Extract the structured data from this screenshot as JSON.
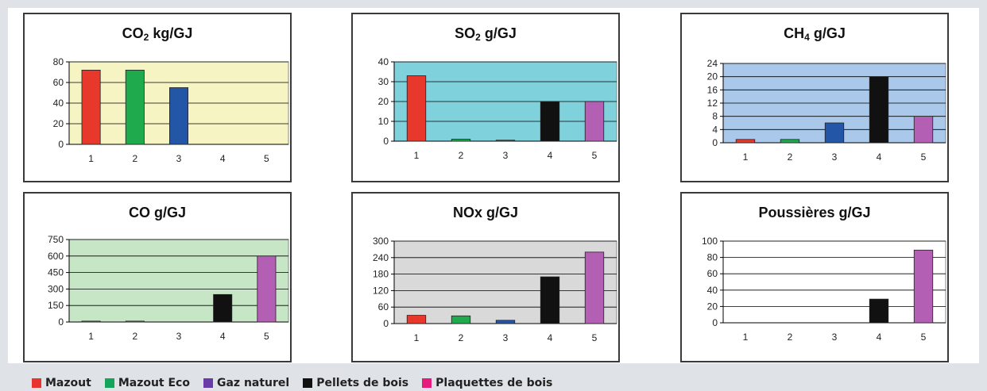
{
  "chart_data": [
    {
      "type": "bar",
      "title_main": "CO",
      "title_sub": "2",
      "title_rest": " kg/GJ",
      "categories": [
        "1",
        "2",
        "3",
        "4",
        "5"
      ],
      "values": [
        72,
        72,
        55,
        0,
        0
      ],
      "bar_colors": [
        "#e8372b",
        "#1faa4d",
        "#2456a8",
        "#111111",
        "#b35fb3"
      ],
      "ylim": [
        0,
        80
      ],
      "yticks": [
        "0",
        "20",
        "40",
        "60",
        "80"
      ],
      "plot_bg": "#f6f4c2"
    },
    {
      "type": "bar",
      "title_main": "SO",
      "title_sub": "2",
      "title_rest": " g/GJ",
      "categories": [
        "1",
        "2",
        "3",
        "4",
        "5"
      ],
      "values": [
        33,
        1,
        0.5,
        20,
        20
      ],
      "bar_colors": [
        "#e8372b",
        "#1faa4d",
        "#2456a8",
        "#111111",
        "#b35fb3"
      ],
      "ylim": [
        0,
        40
      ],
      "yticks": [
        "0",
        "10",
        "20",
        "30",
        "40"
      ],
      "plot_bg": "#7fd1dc"
    },
    {
      "type": "bar",
      "title_main": "CH",
      "title_sub": "4",
      "title_rest": " g/GJ",
      "categories": [
        "1",
        "2",
        "3",
        "4",
        "5"
      ],
      "values": [
        1,
        1,
        6,
        20,
        8
      ],
      "bar_colors": [
        "#e8372b",
        "#1faa4d",
        "#2456a8",
        "#111111",
        "#b35fb3"
      ],
      "ylim": [
        0,
        24
      ],
      "yticks": [
        "0",
        "4",
        "8",
        "12",
        "16",
        "20",
        "24"
      ],
      "plot_bg": "#a9c8ea"
    },
    {
      "type": "bar",
      "title_main": "CO g/GJ",
      "title_sub": "",
      "title_rest": "",
      "categories": [
        "1",
        "2",
        "3",
        "4",
        "5"
      ],
      "values": [
        8,
        8,
        0,
        250,
        600
      ],
      "bar_colors": [
        "#e8372b",
        "#1faa4d",
        "#2456a8",
        "#111111",
        "#b35fb3"
      ],
      "ylim": [
        0,
        750
      ],
      "yticks": [
        "0",
        "150",
        "300",
        "450",
        "600",
        "750"
      ],
      "plot_bg": "#c6e6c6"
    },
    {
      "type": "bar",
      "title_main": "NOx g/GJ",
      "title_sub": "",
      "title_rest": "",
      "categories": [
        "1",
        "2",
        "3",
        "4",
        "5"
      ],
      "values": [
        30,
        28,
        12,
        170,
        260
      ],
      "bar_colors": [
        "#e8372b",
        "#1faa4d",
        "#2456a8",
        "#111111",
        "#b35fb3"
      ],
      "ylim": [
        0,
        300
      ],
      "yticks": [
        "0",
        "60",
        "120",
        "180",
        "240",
        "300"
      ],
      "plot_bg": "#d9d9d9"
    },
    {
      "type": "bar",
      "title_main": "Poussières g/GJ",
      "title_sub": "",
      "title_rest": "",
      "categories": [
        "1",
        "2",
        "3",
        "4",
        "5"
      ],
      "values": [
        0,
        0,
        0,
        29,
        89
      ],
      "bar_colors": [
        "#e8372b",
        "#1faa4d",
        "#2456a8",
        "#111111",
        "#b35fb3"
      ],
      "ylim": [
        0,
        100
      ],
      "yticks": [
        "0",
        "20",
        "40",
        "60",
        "80",
        "100"
      ],
      "plot_bg": "#ffffff"
    }
  ],
  "legend": [
    {
      "label": "Mazout",
      "color": "#e8342f"
    },
    {
      "label": "Mazout Eco",
      "color": "#13a55a"
    },
    {
      "label": "Gaz naturel",
      "color": "#6a3aa8"
    },
    {
      "label": "Pellets de bois",
      "color": "#111111"
    },
    {
      "label": "Plaquettes de bois",
      "color": "#e6197d"
    }
  ]
}
